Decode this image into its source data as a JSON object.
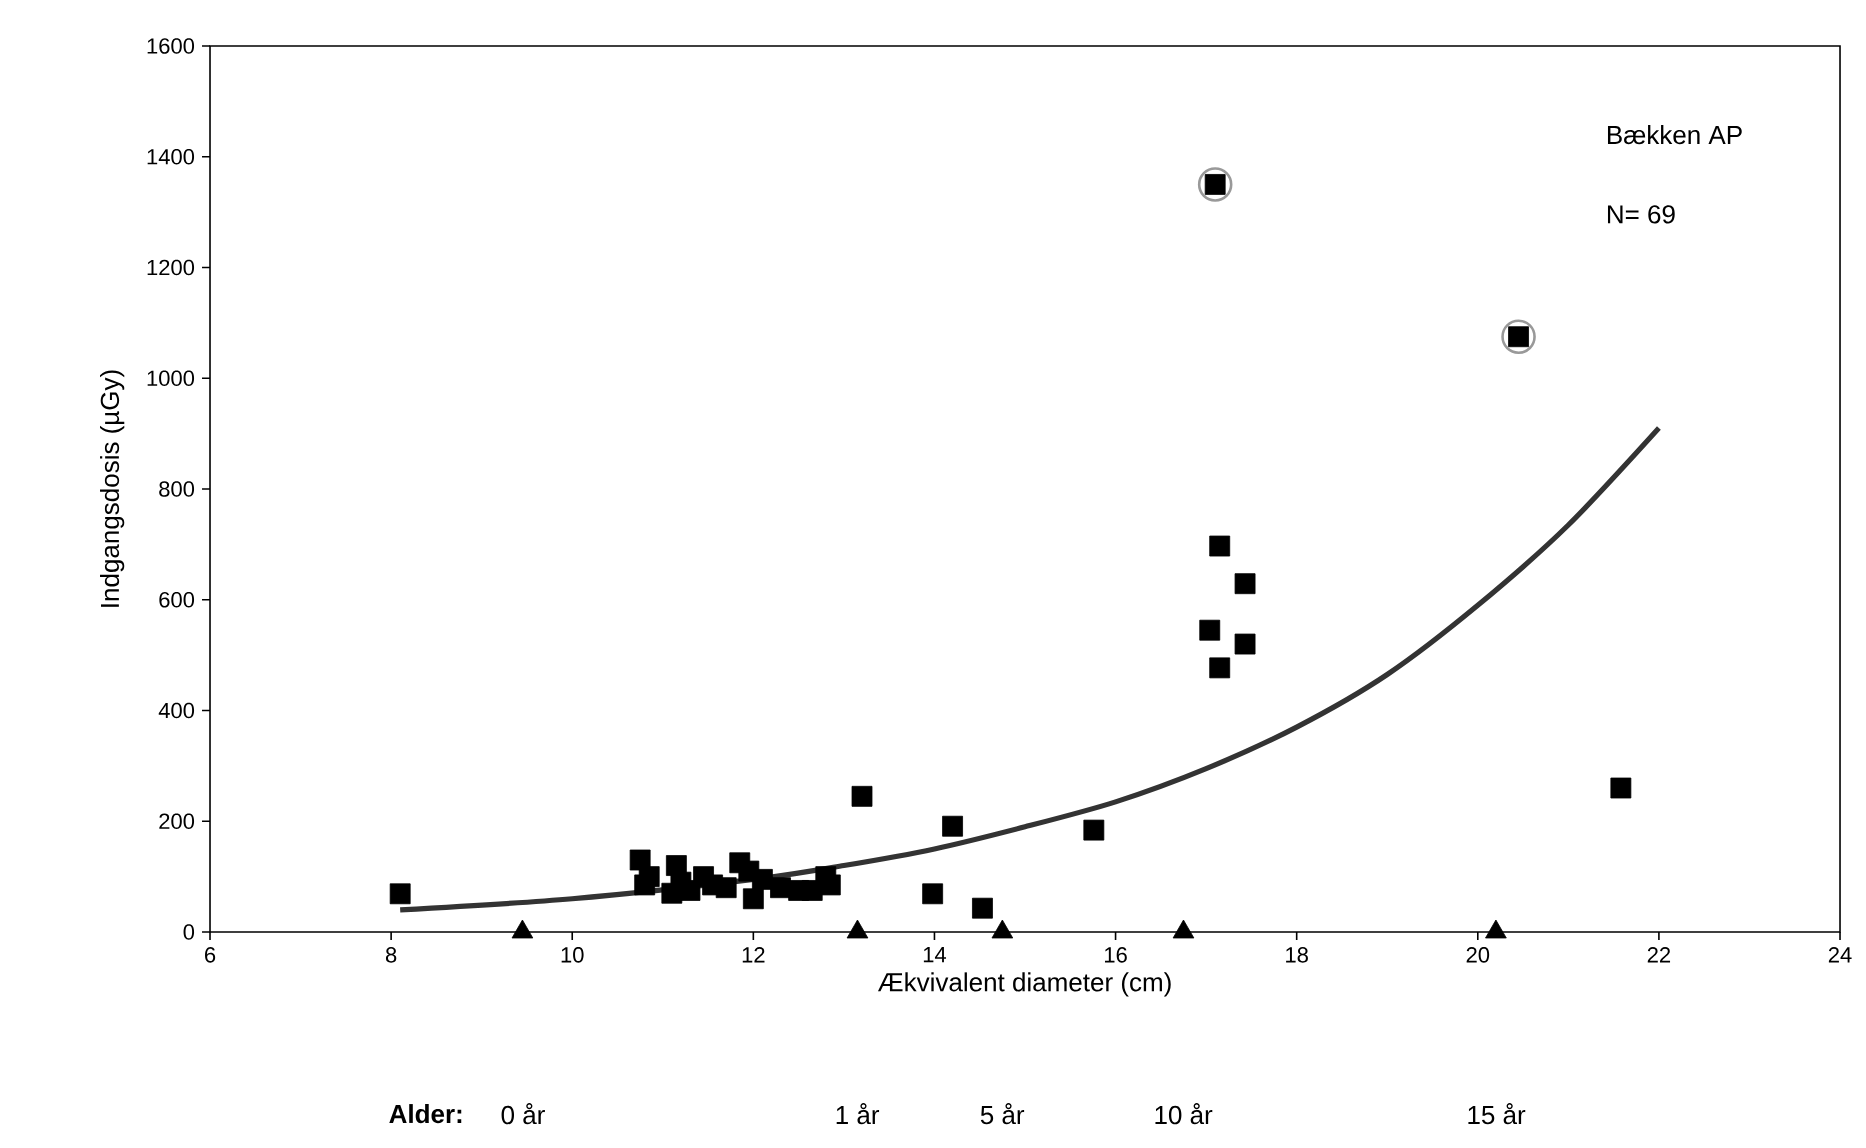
{
  "chart_data": {
    "type": "scatter",
    "xlabel": "Ækvivalent diameter (cm)",
    "ylabel": "Indgangsdosis (µGy)",
    "xlim": [
      6,
      24
    ],
    "ylim": [
      0,
      1600
    ],
    "xticks": [
      6,
      8,
      10,
      12,
      14,
      16,
      18,
      20,
      22,
      24
    ],
    "yticks": [
      0,
      200,
      400,
      600,
      800,
      1000,
      1200,
      1400,
      1600
    ],
    "annotations": [
      "Bækken AP",
      "N= 69",
      "Alder:",
      "0 år",
      "1 år",
      "5 år",
      "10 år",
      "15 år"
    ],
    "series": [
      {
        "marker": "square",
        "color": "#000000",
        "x": [
          8.1,
          10.75,
          10.8,
          10.85,
          11.1,
          11.15,
          11.2,
          11.3,
          11.45,
          11.55,
          11.7,
          11.85,
          11.95,
          12.0,
          12.1,
          12.3,
          12.5,
          12.65,
          12.8,
          12.85,
          13.2,
          13.98,
          14.2,
          14.53,
          15.76,
          17.04,
          17.15,
          17.15,
          17.43,
          17.43,
          17.1,
          20.45,
          21.58
        ],
        "values": [
          69,
          130,
          85,
          100,
          70,
          120,
          90,
          75,
          100,
          85,
          80,
          125,
          110,
          60,
          95,
          80,
          75,
          75,
          100,
          85,
          245,
          69,
          191,
          43,
          184,
          545,
          697,
          477,
          629,
          520,
          1350,
          1075,
          260
        ]
      },
      {
        "marker": "circle",
        "color": "#999999",
        "x": [
          17.1,
          20.45
        ],
        "values": [
          1350,
          1075
        ]
      },
      {
        "marker": "triangle",
        "color": "#000000",
        "x": [
          9.45,
          13.15,
          14.75,
          16.75,
          20.2
        ],
        "values": [
          0,
          0,
          0,
          0,
          0
        ]
      },
      {
        "type": "line",
        "marker": "none",
        "line_style": "solid",
        "color": "#333333",
        "x": [
          8.1,
          10,
          12,
          13,
          14,
          15,
          16,
          17,
          18,
          19,
          20,
          21,
          22
        ],
        "values": [
          40,
          60,
          95,
          120,
          150,
          190,
          235,
          295,
          370,
          465,
          590,
          735,
          910
        ]
      }
    ]
  }
}
